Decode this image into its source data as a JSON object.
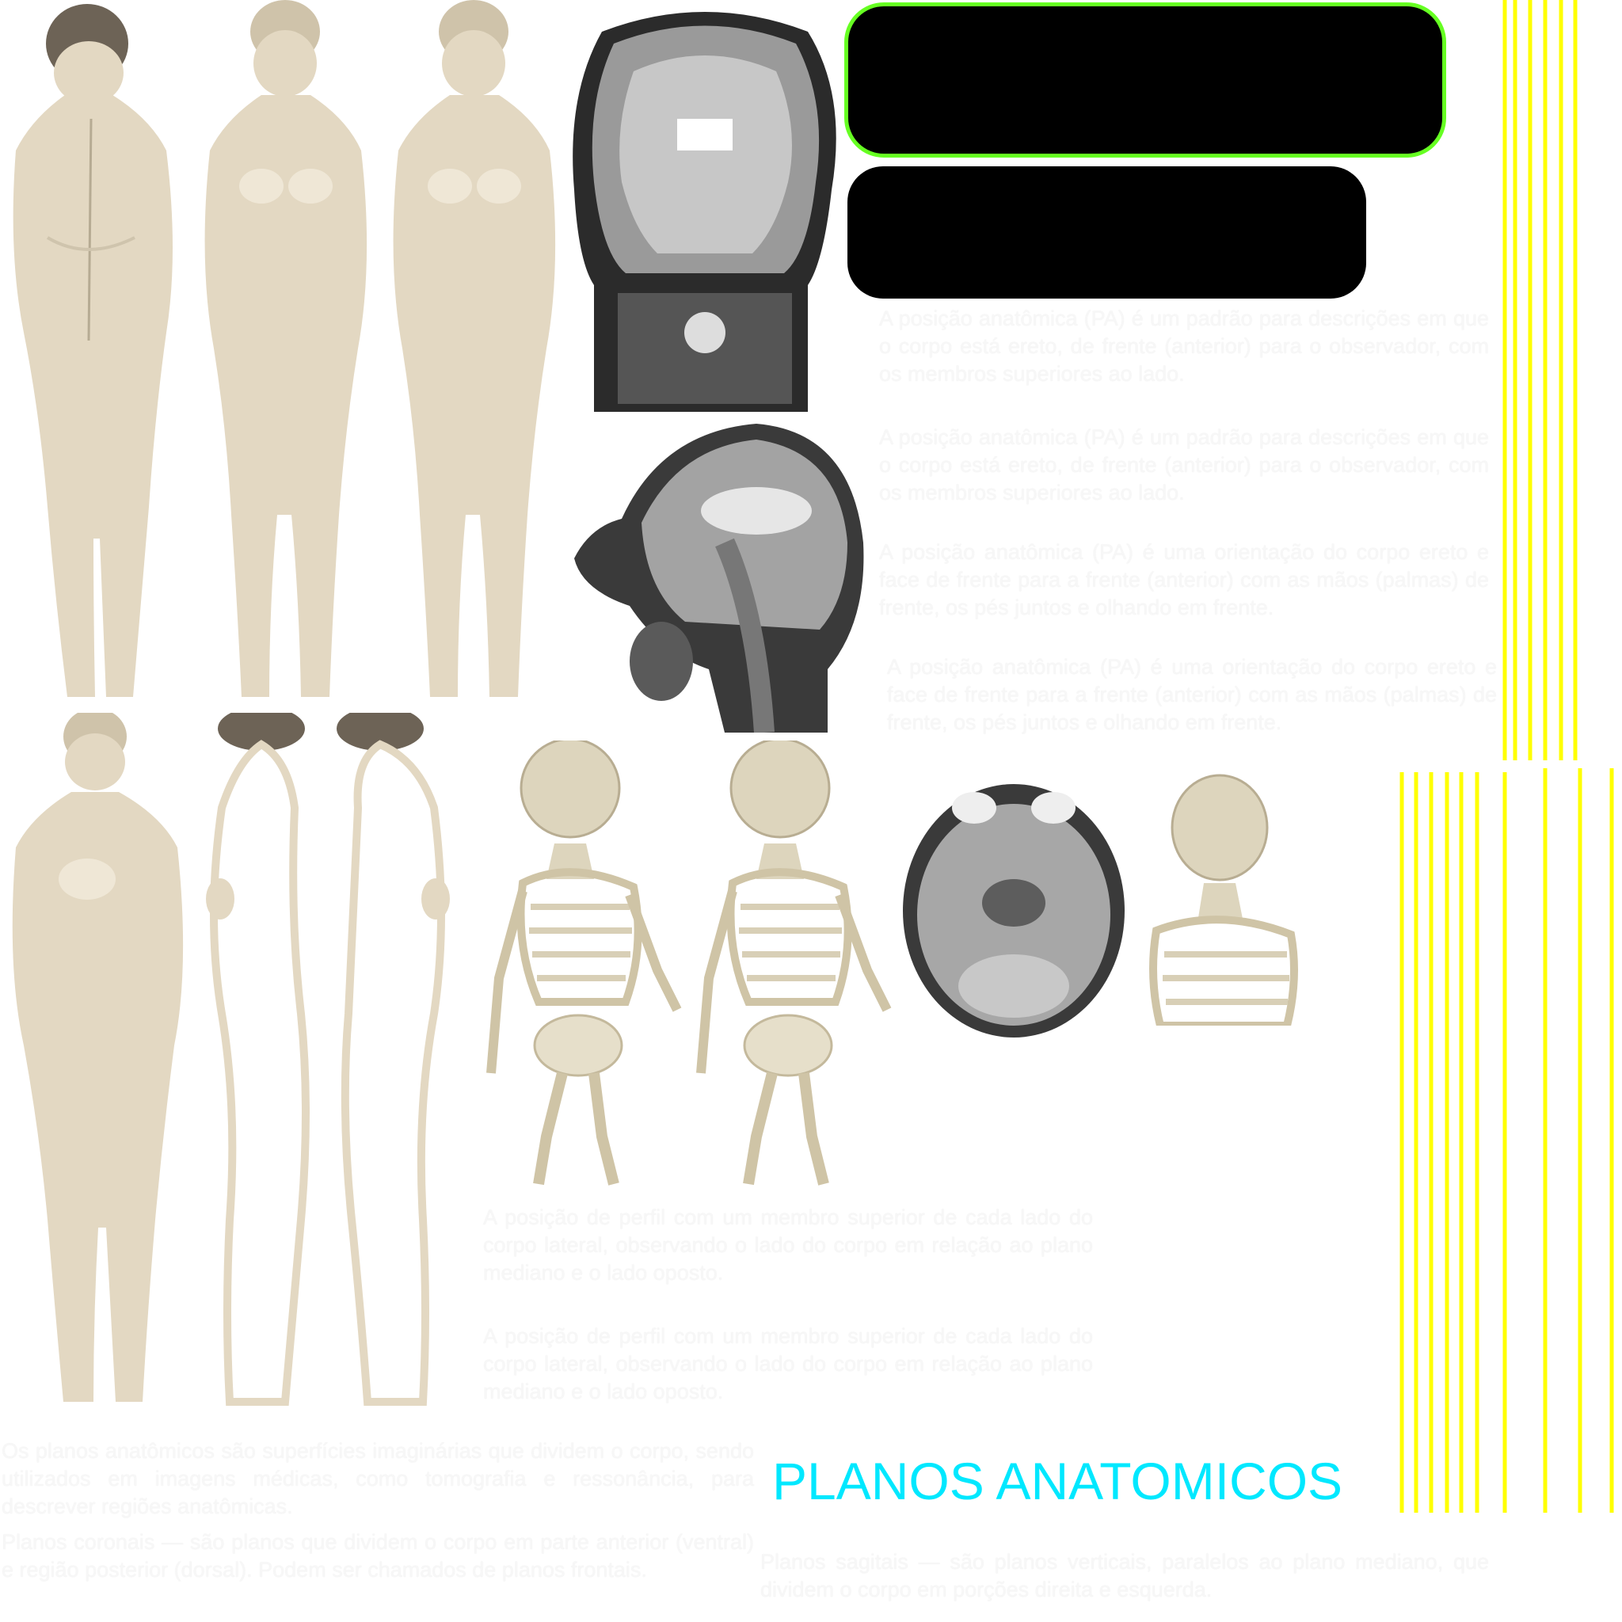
{
  "title": "PLANOS ANATOMICOS",
  "colors": {
    "title": "#00e8ff",
    "pill_border": "#66ff22",
    "stripes": "#ffff00",
    "skin": "#e3d8c2",
    "hair": "#6d6356",
    "bone": "#ddd5bd",
    "mri": "#8a8a8a"
  },
  "images": {
    "figures": [
      "female-posterior-figure",
      "female-anterior-figure",
      "female-anterior-figure-copy",
      "female-lateral-figure",
      "female-lateral-figure-left",
      "female-lateral-figure-right"
    ],
    "mri": [
      "coronal-mri-slice",
      "sagittal-mri-slice",
      "axial-mri-slice"
    ],
    "skeletons": [
      "skeleton-anterolateral",
      "skeleton-anterolateral-copy",
      "skeleton-upper-body"
    ]
  },
  "texts": {
    "p_anatomical_1": "A posição anatômica (PA) é um padrão para descrições em que o corpo está ereto, de frente (anterior) para o observador, com os membros superiores ao lado.",
    "p_anatomical_2": "A posição anatômica (PA) é um padrão para descrições em que o corpo está ereto, de frente (anterior) para o observador, com os membros superiores ao lado.",
    "p_anatomical_3": "A posição anatômica (PA) é uma orientação do corpo ereto e face de frente para a frente (anterior) com as mãos (palmas) de frente, os pés juntos e olhando em frente.",
    "p_anatomical_4": "A posição anatômica (PA) é uma orientação do corpo ereto e face de frente para a frente (anterior) com as mãos (palmas) de frente, os pés juntos e olhando em frente.",
    "p_profile_1": "A posição de perfil com um membro superior de cada lado do corpo lateral, observando o lado do corpo em relação ao plano mediano e o lado oposto.",
    "p_profile_2": "A posição de perfil com um membro superior de cada lado do corpo lateral, observando o lado do corpo em relação ao plano mediano e o lado oposto.",
    "p_planes": "Os planos anatômicos são superfícies imaginárias que dividem o corpo, sendo utilizados em imagens médicas, como tomografia e ressonância, para descrever regiões anatômicas.",
    "p_frontal": "Planos coronais — são planos que dividem o corpo em parte anterior (ventral) e região posterior (dorsal). Podem ser chamados de planos frontais.",
    "p_sagittal": "Planos sagitais — são planos verticais, paralelos ao plano mediano, que dividem o corpo em porções direita e esquerda."
  }
}
